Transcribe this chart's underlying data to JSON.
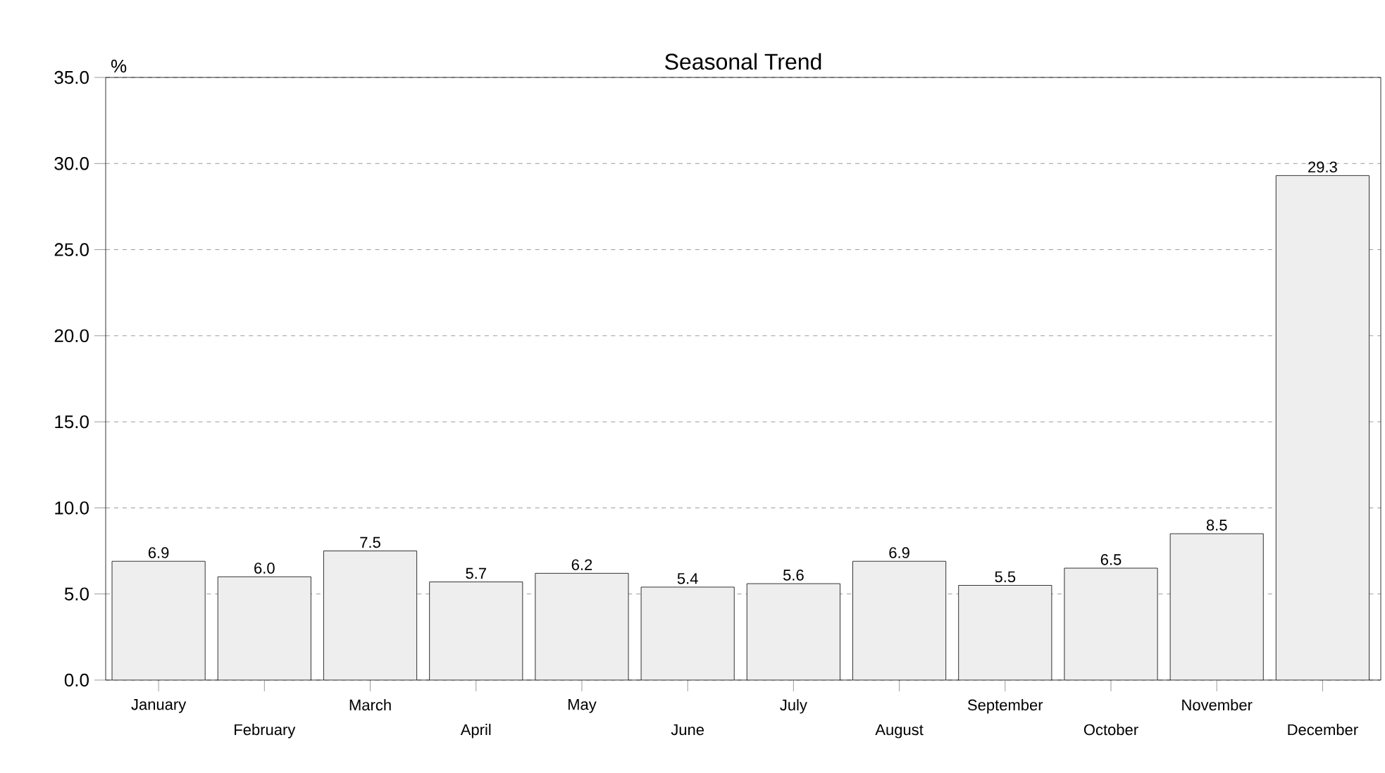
{
  "chart_data": {
    "type": "bar",
    "title": "Seasonal Trend",
    "ylabel": "%",
    "categories": [
      "January",
      "February",
      "March",
      "April",
      "May",
      "June",
      "July",
      "August",
      "September",
      "October",
      "November",
      "December"
    ],
    "values": [
      6.9,
      6.0,
      7.5,
      5.7,
      6.2,
      5.4,
      5.6,
      6.9,
      5.5,
      6.5,
      8.5,
      29.3
    ],
    "color": "#eeeeee",
    "value_labels": [
      "6.9",
      "6.0",
      "7.5",
      "5.7",
      "6.2",
      "5.4",
      "5.6",
      "6.9",
      "5.5",
      "6.5",
      "8.5",
      "29.3"
    ],
    "ylim": [
      0,
      35
    ],
    "yticks": [
      {
        "value": 0,
        "label": "0.0"
      },
      {
        "value": 5,
        "label": "5.0"
      },
      {
        "value": 10,
        "label": "10.0"
      },
      {
        "value": 15,
        "label": "15.0"
      },
      {
        "value": 20,
        "label": "20.0"
      },
      {
        "value": 25,
        "label": "25.0"
      },
      {
        "value": 30,
        "label": "30.0"
      },
      {
        "value": 35,
        "label": "35.0"
      }
    ],
    "grid": "y"
  }
}
